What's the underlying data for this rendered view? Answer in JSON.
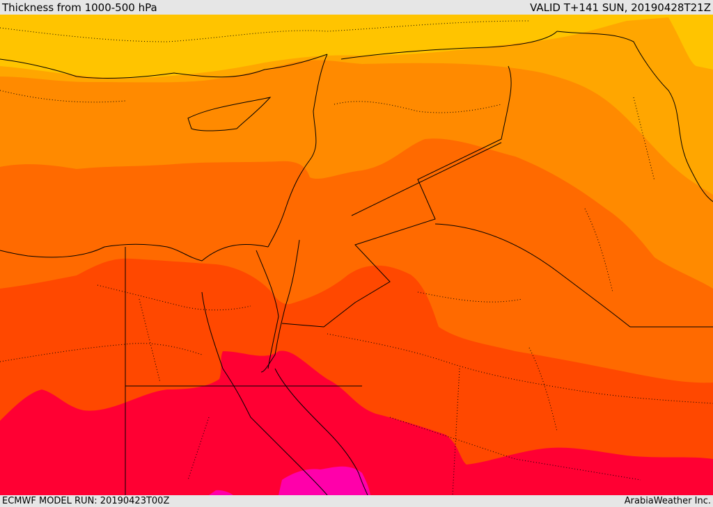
{
  "header": {
    "title": "Thickness from 1000-500 hPa",
    "valid_time": "VALID T+141 SUN, 20190428T21Z"
  },
  "footer": {
    "model_run": "ECMWF MODEL RUN: 20190423T00Z",
    "credit": "ArabiaWeather Inc."
  },
  "colors": {
    "band_1": "#ffc400",
    "band_2": "#ffa600",
    "band_3": "#ff8a00",
    "band_4": "#ff6a00",
    "band_5": "#ff4800",
    "band_6": "#ff0033",
    "band_7": "#ff00aa",
    "boundary_line": "#000000"
  }
}
